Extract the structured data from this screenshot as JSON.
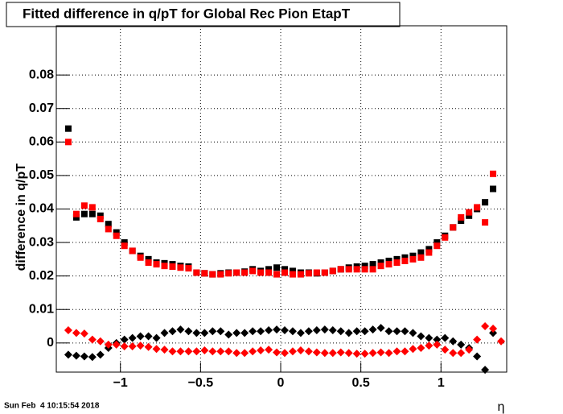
{
  "chart_data": {
    "type": "scatter",
    "title": "Fitted difference in q/pT for Global Rec Pion EtapT",
    "ylabel": "difference in q/pT",
    "xlabel": "η",
    "timestamp": "Sun Feb  4 10:15:54 2018",
    "x": [
      -1.325,
      -1.275,
      -1.225,
      -1.175,
      -1.125,
      -1.075,
      -1.025,
      -0.975,
      -0.925,
      -0.875,
      -0.825,
      -0.775,
      -0.725,
      -0.675,
      -0.625,
      -0.575,
      -0.525,
      -0.475,
      -0.425,
      -0.375,
      -0.325,
      -0.275,
      -0.225,
      -0.175,
      -0.125,
      -0.075,
      -0.025,
      0.025,
      0.075,
      0.125,
      0.175,
      0.225,
      0.275,
      0.325,
      0.375,
      0.425,
      0.475,
      0.525,
      0.575,
      0.625,
      0.675,
      0.725,
      0.775,
      0.825,
      0.875,
      0.925,
      0.975,
      1.025,
      1.075,
      1.125,
      1.175,
      1.225,
      1.275,
      1.325,
      1.375
    ],
    "series": [
      {
        "color": "#000000",
        "marker": "square",
        "values": [
          0.064,
          0.0375,
          0.0385,
          0.0385,
          0.038,
          0.0355,
          0.033,
          0.03,
          0.0275,
          0.026,
          0.025,
          0.024,
          0.0238,
          0.0235,
          0.023,
          0.0228,
          0.021,
          0.0208,
          0.0205,
          0.0208,
          0.021,
          0.021,
          0.0213,
          0.022,
          0.0215,
          0.022,
          0.0225,
          0.022,
          0.0215,
          0.021,
          0.021,
          0.0208,
          0.021,
          0.0215,
          0.022,
          0.0225,
          0.0228,
          0.023,
          0.0235,
          0.024,
          0.0245,
          0.025,
          0.0255,
          0.026,
          0.027,
          0.028,
          0.03,
          0.032,
          0.0345,
          0.0365,
          0.038,
          0.04,
          0.042,
          0.046,
          null
        ]
      },
      {
        "color": "#ff0000",
        "marker": "square",
        "values": [
          0.06,
          0.0385,
          0.041,
          0.0405,
          0.037,
          0.034,
          0.032,
          0.029,
          0.0275,
          0.0255,
          0.024,
          0.0235,
          0.023,
          0.0228,
          0.0225,
          0.0223,
          0.021,
          0.0208,
          0.0205,
          0.0205,
          0.0208,
          0.021,
          0.021,
          0.0215,
          0.021,
          0.021,
          0.0205,
          0.021,
          0.0205,
          0.0205,
          0.0208,
          0.021,
          0.021,
          0.0215,
          0.022,
          0.022,
          0.022,
          0.022,
          0.022,
          0.023,
          0.0235,
          0.024,
          0.0245,
          0.025,
          0.0255,
          0.027,
          0.029,
          0.0315,
          0.0345,
          0.0375,
          0.039,
          0.0405,
          0.036,
          0.0505,
          null
        ]
      },
      {
        "color": "#000000",
        "marker": "diamond",
        "values": [
          -0.0035,
          -0.0038,
          -0.004,
          -0.0042,
          -0.0035,
          -0.0015,
          0,
          0.001,
          0.0015,
          0.002,
          0.002,
          0.0015,
          0.003,
          0.0035,
          0.004,
          0.0035,
          0.003,
          0.003,
          0.0035,
          0.0035,
          0.0025,
          0.003,
          0.003,
          0.0035,
          0.0035,
          0.0038,
          0.004,
          0.0038,
          0.0035,
          0.003,
          0.0035,
          0.0038,
          0.004,
          0.0038,
          0.0035,
          0.003,
          0.0035,
          0.0035,
          0.004,
          0.0045,
          0.0035,
          0.0035,
          0.0035,
          0.003,
          0.002,
          0.0015,
          0.001,
          0.0015,
          0.0005,
          -0.0005,
          -0.0015,
          -0.004,
          -0.008,
          0.003,
          null
        ]
      },
      {
        "color": "#ff0000",
        "marker": "diamond",
        "values": [
          0.0038,
          0.003,
          0.0028,
          0.001,
          0.0005,
          -0.0005,
          -0.0005,
          -0.001,
          -0.001,
          -0.0008,
          -0.0012,
          -0.0018,
          -0.002,
          -0.0025,
          -0.0025,
          -0.0025,
          -0.0025,
          -0.0022,
          -0.0025,
          -0.0025,
          -0.0025,
          -0.003,
          -0.003,
          -0.0025,
          -0.0022,
          -0.002,
          -0.0028,
          -0.003,
          -0.0025,
          -0.0022,
          -0.0025,
          -0.0028,
          -0.003,
          -0.003,
          -0.0028,
          -0.003,
          -0.0032,
          -0.0032,
          -0.003,
          -0.0028,
          -0.003,
          -0.0025,
          -0.0025,
          -0.0018,
          -0.0015,
          -0.0008,
          -0.0005,
          -0.002,
          -0.003,
          -0.003,
          -0.002,
          0.001,
          0.005,
          0.0043,
          0.0005
        ]
      }
    ],
    "xlim": [
      -1.4,
      1.41
    ],
    "ylim": [
      -0.0087,
      0.0947
    ],
    "xticks": [
      {
        "value": -1,
        "label": "−1"
      },
      {
        "value": -0.5,
        "label": "−0.5"
      },
      0,
      0.5,
      1
    ],
    "yticks": [
      0,
      0.01,
      0.02,
      0.03,
      0.04,
      0.05,
      0.06,
      0.07,
      0.08
    ],
    "grid": true
  }
}
